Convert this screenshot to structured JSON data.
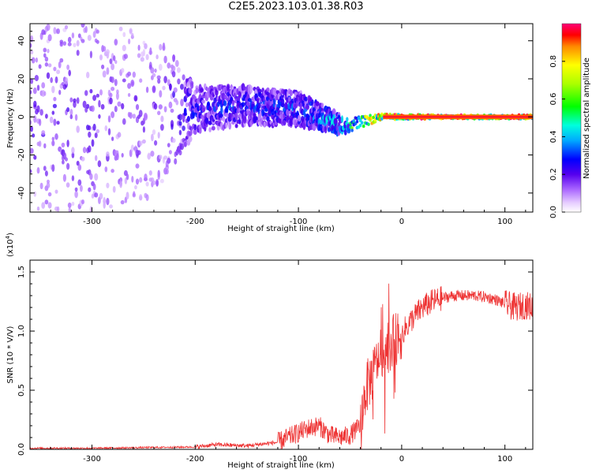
{
  "title": "C2E5.2023.103.01.38.R03",
  "colors": {
    "snr_line": "#ee3333",
    "spectrogram_low": "#cc99ff",
    "spectrogram_mid": "#5500ee",
    "spectrogram_peak": "#ff2222"
  },
  "chart_data": [
    {
      "type": "heatmap",
      "title": "",
      "xlabel": "Height of straight line (km)",
      "ylabel": "Frequency (Hz)",
      "xlim": [
        -360,
        127
      ],
      "ylim": [
        -50,
        49
      ],
      "xticks": [
        {
          "value": -300,
          "label": "-300"
        },
        {
          "value": -200,
          "label": "-200"
        },
        {
          "value": -100,
          "label": "-100"
        },
        {
          "value": 0,
          "label": "0"
        },
        {
          "value": 100,
          "label": "100"
        }
      ],
      "yticks": [
        {
          "value": -40,
          "label": "-40"
        },
        {
          "value": -20,
          "label": "-20"
        },
        {
          "value": 0,
          "label": "0"
        },
        {
          "value": 20,
          "label": "20"
        },
        {
          "value": 40,
          "label": "40"
        }
      ],
      "colorbar": {
        "label": "Normalized spectral amplitude",
        "range": [
          0,
          1
        ],
        "colormap": "rainbow",
        "ticks": [
          {
            "value": 0.0,
            "label": "0.0"
          },
          {
            "value": 0.2,
            "label": "0.2"
          },
          {
            "value": 0.4,
            "label": "0.4"
          },
          {
            "value": 0.6,
            "label": "0.6"
          },
          {
            "value": 0.8,
            "label": "0.8"
          }
        ]
      },
      "spectral_profile": {
        "height_km": [
          -360,
          -300,
          -240,
          -200,
          -150,
          -100,
          -80,
          -60,
          -40,
          -20,
          0,
          50,
          100,
          127
        ],
        "center_freq_hz": [
          0,
          0,
          2,
          4,
          6,
          4,
          0,
          -4,
          -3,
          0,
          0,
          0,
          0,
          0
        ],
        "spread_hz": [
          49,
          49,
          45,
          12,
          10,
          9,
          7,
          5,
          3,
          1.5,
          1.2,
          1,
          1,
          1
        ],
        "peak_amplitude": [
          0.22,
          0.22,
          0.18,
          0.3,
          0.32,
          0.35,
          0.42,
          0.5,
          0.7,
          0.95,
          0.97,
          0.97,
          0.96,
          0.95
        ]
      }
    },
    {
      "type": "line",
      "title": "",
      "xlabel": "Height of straight line (km)",
      "ylabel": "SNR (10 * V/V)",
      "yscale_label": "(x10",
      "yscale_exp": "4",
      "xlim": [
        -360,
        127
      ],
      "ylim": [
        0,
        1.6
      ],
      "xticks": [
        {
          "value": -300,
          "label": "-300"
        },
        {
          "value": -200,
          "label": "-200"
        },
        {
          "value": -100,
          "label": "-100"
        },
        {
          "value": 0,
          "label": "0"
        },
        {
          "value": 100,
          "label": "100"
        }
      ],
      "yticks": [
        {
          "value": 0.0,
          "label": "0.0"
        },
        {
          "value": 0.5,
          "label": "0.5"
        },
        {
          "value": 1.0,
          "label": "1.0"
        },
        {
          "value": 1.5,
          "label": "1.5"
        }
      ],
      "x": [
        -360,
        -300,
        -250,
        -200,
        -180,
        -150,
        -120,
        -110,
        -100,
        -90,
        -80,
        -70,
        -60,
        -50,
        -40,
        -35,
        -30,
        -25,
        -20,
        -15,
        -10,
        0,
        10,
        20,
        30,
        40,
        50,
        60,
        70,
        80,
        90,
        100,
        110,
        120,
        127
      ],
      "y": [
        0.01,
        0.01,
        0.015,
        0.02,
        0.04,
        0.03,
        0.06,
        0.1,
        0.14,
        0.18,
        0.2,
        0.12,
        0.1,
        0.12,
        0.2,
        0.5,
        0.6,
        0.7,
        0.82,
        0.85,
        0.9,
        0.98,
        1.1,
        1.2,
        1.25,
        1.28,
        1.3,
        1.3,
        1.3,
        1.29,
        1.27,
        1.23,
        1.2,
        1.22,
        1.2
      ]
    }
  ]
}
